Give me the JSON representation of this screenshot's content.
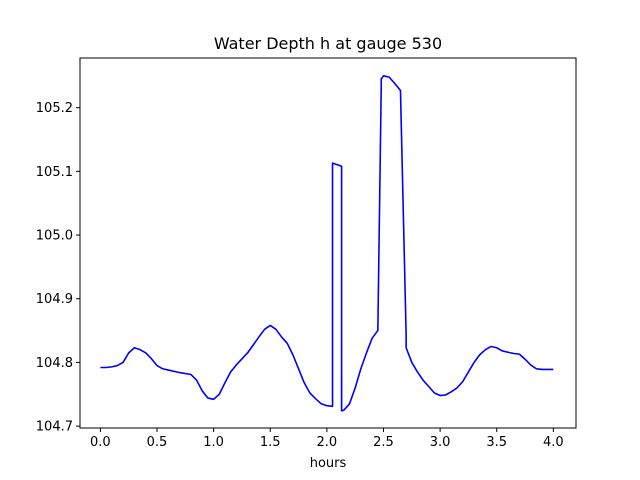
{
  "chart_data": {
    "type": "line",
    "title": "Water Depth h at gauge 530",
    "xlabel": "hours",
    "ylabel": "",
    "xlim": [
      -0.18,
      4.2
    ],
    "ylim": [
      104.697,
      105.278
    ],
    "x_ticks": [
      0.0,
      0.5,
      1.0,
      1.5,
      2.0,
      2.5,
      3.0,
      3.5,
      4.0
    ],
    "x_tick_labels": [
      "0.0",
      "0.5",
      "1.0",
      "1.5",
      "2.0",
      "2.5",
      "3.0",
      "3.5",
      "4.0"
    ],
    "y_ticks": [
      104.7,
      104.8,
      104.9,
      105.0,
      105.1,
      105.2
    ],
    "y_tick_labels": [
      "104.7",
      "104.8",
      "104.9",
      "105.0",
      "105.1",
      "105.2"
    ],
    "grid": false,
    "legend": "none",
    "series": [
      {
        "color": "#0000ff",
        "x": [
          0.0,
          0.05,
          0.1,
          0.15,
          0.2,
          0.25,
          0.3,
          0.35,
          0.4,
          0.45,
          0.5,
          0.55,
          0.6,
          0.7,
          0.8,
          0.85,
          0.9,
          0.95,
          1.0,
          1.05,
          1.1,
          1.15,
          1.2,
          1.3,
          1.4,
          1.45,
          1.5,
          1.55,
          1.6,
          1.65,
          1.7,
          1.75,
          1.8,
          1.85,
          1.9,
          1.95,
          2.0,
          2.05,
          2.05,
          2.1,
          2.13,
          2.13,
          2.15,
          2.2,
          2.25,
          2.3,
          2.35,
          2.4,
          2.45,
          2.48,
          2.48,
          2.5,
          2.55,
          2.6,
          2.65,
          2.7,
          2.7,
          2.75,
          2.8,
          2.85,
          2.9,
          2.95,
          3.0,
          3.05,
          3.1,
          3.15,
          3.2,
          3.25,
          3.3,
          3.35,
          3.4,
          3.45,
          3.5,
          3.55,
          3.6,
          3.65,
          3.7,
          3.75,
          3.8,
          3.85,
          3.9,
          3.95,
          4.0
        ],
        "y": [
          104.792,
          104.792,
          104.793,
          104.795,
          104.8,
          104.815,
          104.823,
          104.82,
          104.815,
          104.806,
          104.795,
          104.79,
          104.788,
          104.784,
          104.781,
          104.772,
          104.755,
          104.744,
          104.742,
          104.75,
          104.768,
          104.785,
          104.796,
          104.815,
          104.84,
          104.852,
          104.858,
          104.852,
          104.84,
          104.83,
          104.812,
          104.79,
          104.768,
          104.752,
          104.743,
          104.735,
          104.732,
          104.731,
          105.113,
          105.11,
          105.108,
          104.724,
          104.725,
          104.735,
          104.76,
          104.79,
          104.815,
          104.838,
          104.85,
          105.232,
          105.245,
          105.25,
          105.248,
          105.238,
          105.227,
          104.843,
          104.823,
          104.8,
          104.785,
          104.772,
          104.762,
          104.752,
          104.748,
          104.749,
          104.754,
          104.76,
          104.77,
          104.785,
          104.8,
          104.812,
          104.82,
          104.825,
          104.823,
          104.818,
          104.816,
          104.814,
          104.813,
          104.805,
          104.796,
          104.79,
          104.789,
          104.789,
          104.789
        ]
      }
    ]
  }
}
